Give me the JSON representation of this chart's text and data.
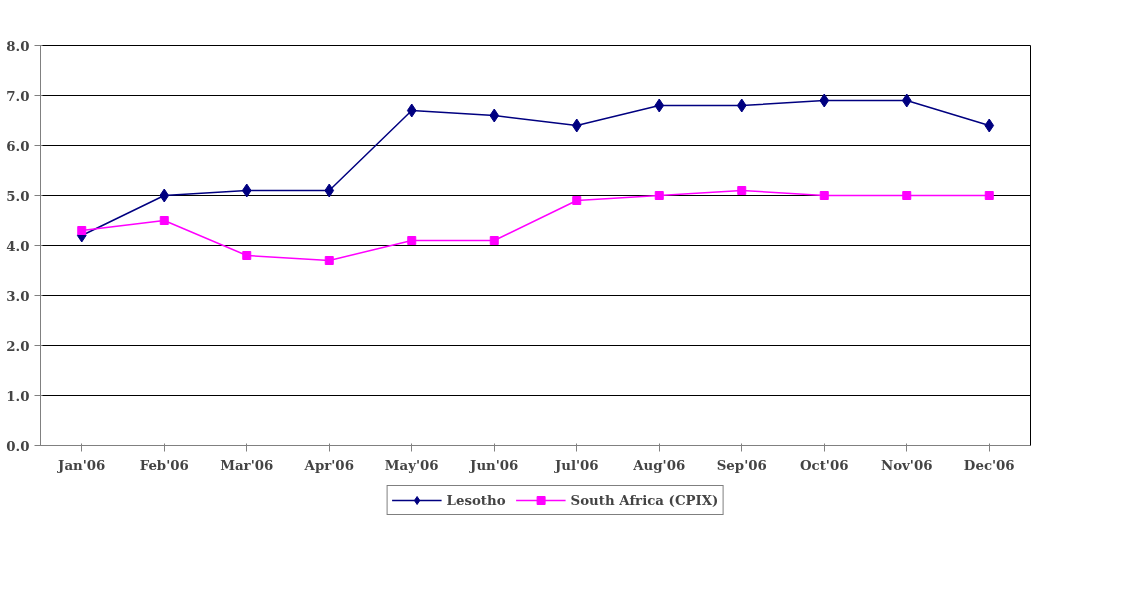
{
  "chart_data": {
    "type": "line",
    "categories": [
      "Jan'06",
      "Feb'06",
      "Mar'06",
      "Apr'06",
      "May'06",
      "Jun'06",
      "Jul'06",
      "Aug'06",
      "Sep'06",
      "Oct'06",
      "Nov'06",
      "Dec'06"
    ],
    "series": [
      {
        "name": "Lesotho",
        "color": "#000080",
        "marker": "diamond",
        "values": [
          4.2,
          5.0,
          5.1,
          5.1,
          6.7,
          6.6,
          6.4,
          6.8,
          6.8,
          6.9,
          6.9,
          6.4
        ]
      },
      {
        "name": "South Africa (CPIX)",
        "color": "#ff00ff",
        "marker": "square",
        "values": [
          4.3,
          4.5,
          3.8,
          3.7,
          4.1,
          4.1,
          4.9,
          5.0,
          5.1,
          5.0,
          5.0,
          5.0
        ]
      }
    ],
    "ylim": [
      0,
      8
    ],
    "yticks": [
      {
        "value": 0,
        "label": "0.0"
      },
      {
        "value": 1,
        "label": "1.0"
      },
      {
        "value": 2,
        "label": "2.0"
      },
      {
        "value": 3,
        "label": "3.0"
      },
      {
        "value": 4,
        "label": "4.0"
      },
      {
        "value": 5,
        "label": "5.0"
      },
      {
        "value": 6,
        "label": "6.0"
      },
      {
        "value": 7,
        "label": "7.0"
      },
      {
        "value": 8,
        "label": "8.0"
      }
    ],
    "grid": "y",
    "legend": "bottom",
    "line_style": "solid"
  }
}
